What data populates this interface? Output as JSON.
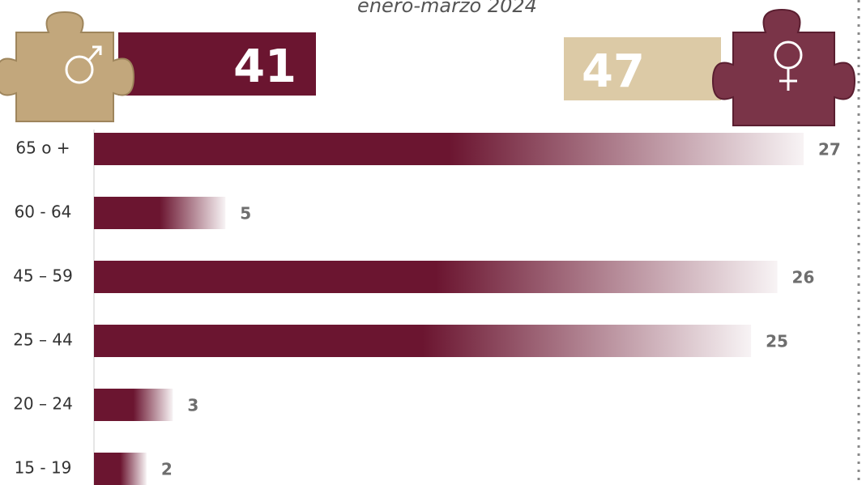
{
  "chart_data": {
    "type": "bar",
    "orientation": "horizontal",
    "subtitle": "enero-marzo 2024",
    "categories": [
      "65 o +",
      "60 - 64",
      "45 – 59",
      "25 – 44",
      "20 – 24",
      "15 - 19"
    ],
    "values": [
      27,
      5,
      26,
      25,
      3,
      2
    ],
    "color": "#6b1530",
    "xlim": [
      0,
      27
    ]
  },
  "totals": {
    "male": {
      "value": 41,
      "color": "#6b1530"
    },
    "female": {
      "value": 47,
      "color": "#dccaa6"
    }
  }
}
